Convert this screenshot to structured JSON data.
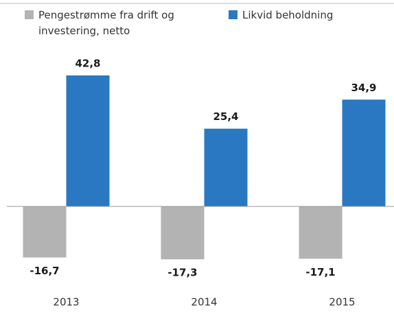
{
  "chart_data": {
    "type": "bar",
    "categories": [
      "2013",
      "2014",
      "2015"
    ],
    "series": [
      {
        "name": "Pengestrømme fra drift og investering, netto",
        "color": "#b3b3b3",
        "values": [
          -16.7,
          -17.3,
          -17.1
        ],
        "value_labels": [
          "-16,7",
          "-17,3",
          "-17,1"
        ]
      },
      {
        "name": "Likvid beholdning",
        "color": "#2a78c2",
        "values": [
          42.8,
          25.4,
          34.9
        ],
        "value_labels": [
          "42,8",
          "25,4",
          "34,9"
        ]
      }
    ]
  }
}
